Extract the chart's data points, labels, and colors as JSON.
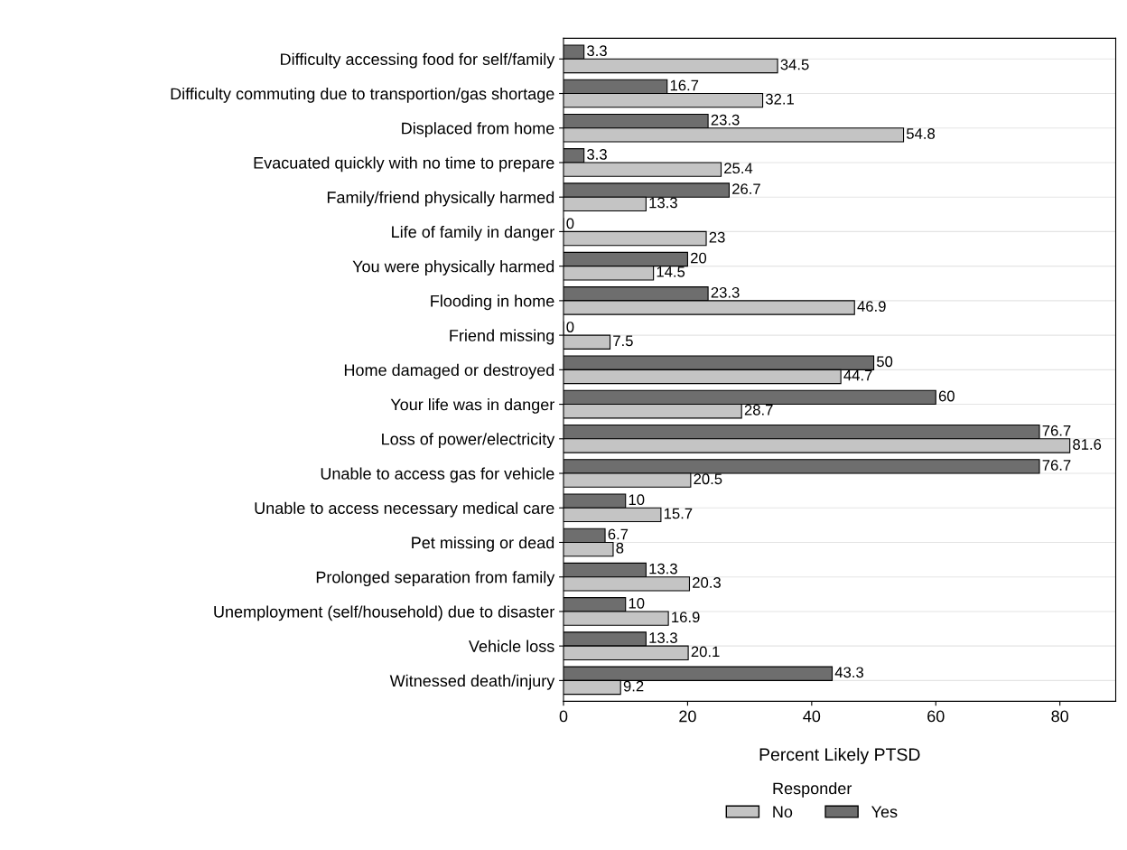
{
  "chart_data": {
    "type": "bar",
    "orientation": "horizontal",
    "xlabel": "Percent Likely PTSD",
    "legend_title": "Responder",
    "legend": "bottom",
    "grid": "y",
    "data_labels": true,
    "categories": [
      "Difficulty accessing food for self/family",
      "Difficulty commuting due to transportion/gas shortage",
      "Displaced from home",
      "Evacuated quickly with no time to prepare",
      "Family/friend physically harmed",
      "Life of family in danger",
      "You were physically harmed",
      "Flooding in home",
      "Friend missing",
      "Home damaged or destroyed",
      "Your life was in danger",
      "Loss of power/electricity",
      "Unable to access gas for vehicle",
      "Unable to access necessary medical care",
      "Pet missing or dead",
      "Prolonged separation from family",
      "Unemployment (self/household) due to disaster",
      "Vehicle loss",
      "Witnessed death/injury"
    ],
    "xlim": [
      0,
      89
    ],
    "xticks": [
      0,
      20,
      40,
      60,
      80
    ],
    "series": [
      {
        "name": "Yes",
        "color": "#6e6e6e",
        "values": [
          3.3,
          16.7,
          23.3,
          3.3,
          26.7,
          0,
          20,
          23.3,
          0,
          50,
          60,
          76.7,
          76.7,
          10,
          6.7,
          13.3,
          10,
          13.3,
          43.3
        ]
      },
      {
        "name": "No",
        "color": "#c4c4c4",
        "values": [
          34.5,
          32.1,
          54.8,
          25.4,
          13.3,
          23,
          14.5,
          46.9,
          7.5,
          44.7,
          28.7,
          81.6,
          20.5,
          15.7,
          8,
          20.3,
          16.9,
          20.1,
          9.2
        ]
      }
    ]
  }
}
